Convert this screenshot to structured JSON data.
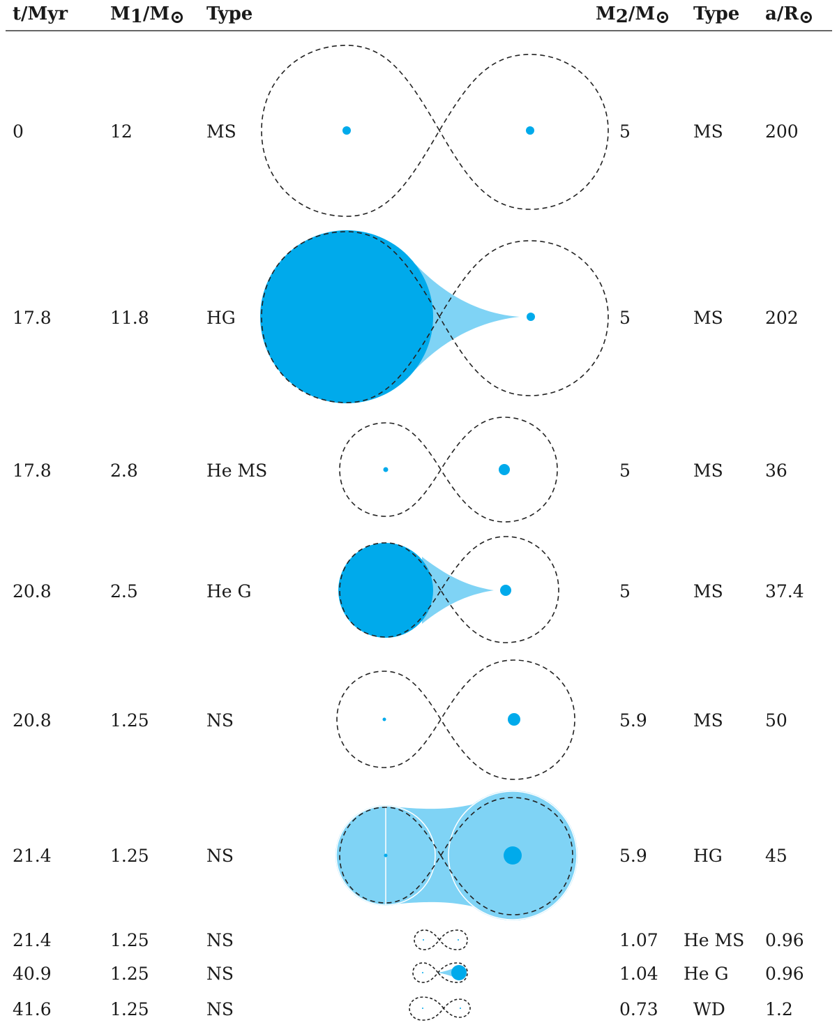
{
  "table": {
    "headers": {
      "t": "t/Myr",
      "m1": "M",
      "m1_sub": "1",
      "m1_rest": "/M",
      "m1_sun": "⊙",
      "type1": "Type",
      "m2": "M",
      "m2_sub": "2",
      "m2_rest": "/M",
      "m2_sun": "⊙",
      "type2": "Type",
      "a": "a/R",
      "a_sun": "⊙"
    },
    "rows": [
      {
        "t": "0",
        "m1": "12",
        "type1": "MS",
        "m2": "5",
        "type2": "MS",
        "a": "200"
      },
      {
        "t": "17.8",
        "m1": "11.8",
        "type1": "HG",
        "m2": "5",
        "type2": "MS",
        "a": "202"
      },
      {
        "t": "17.8",
        "m1": "2.8",
        "type1": "He MS",
        "m2": "5",
        "type2": "MS",
        "a": "36"
      },
      {
        "t": "20.8",
        "m1": "2.5",
        "type1": "He G",
        "m2": "5",
        "type2": "MS",
        "a": "37.4"
      },
      {
        "t": "20.8",
        "m1": "1.25",
        "type1": "NS",
        "m2": "5.9",
        "type2": "MS",
        "a": "50"
      },
      {
        "t": "21.4",
        "m1": "1.25",
        "type1": "NS",
        "m2": "5.9",
        "type2": "HG",
        "a": "45"
      },
      {
        "t": "21.4",
        "m1": "1.25",
        "type1": "NS",
        "m2": "1.07",
        "type2": "He MS",
        "a": "0.96"
      },
      {
        "t": "40.9",
        "m1": "1.25",
        "type1": "NS",
        "m2": "1.04",
        "type2": "He G",
        "a": "0.96"
      },
      {
        "t": "41.6",
        "m1": "1.25",
        "type1": "NS",
        "m2": "0.73",
        "type2": "WD",
        "a": "1.2"
      }
    ]
  },
  "colors": {
    "star": "#00aaeb",
    "flow": "#7fd3f5",
    "lobe_stroke": "#222222",
    "rule": "#333333"
  }
}
